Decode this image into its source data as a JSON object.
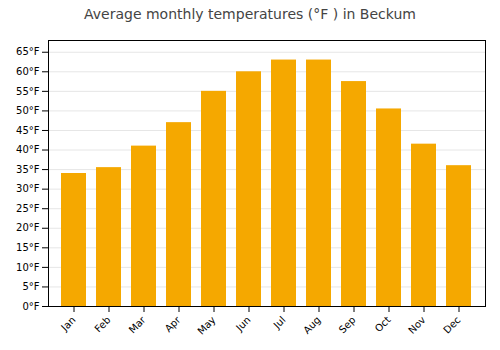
{
  "chart_data": {
    "type": "bar",
    "title": "Average monthly temperatures (°F ) in Beckum",
    "categories": [
      "Jan",
      "Feb",
      "Mar",
      "Apr",
      "May",
      "Jun",
      "Jul",
      "Aug",
      "Sep",
      "Oct",
      "Nov",
      "Dec"
    ],
    "values": [
      34,
      35.5,
      41,
      47,
      55,
      60,
      63,
      63,
      57.5,
      50.5,
      41.5,
      36
    ],
    "color": "#F5A800",
    "ylim": [
      0,
      68
    ],
    "yticks": [
      {
        "value": 0,
        "label": "0°F"
      },
      {
        "value": 5,
        "label": "5°F"
      },
      {
        "value": 10,
        "label": "10°F"
      },
      {
        "value": 15,
        "label": "15°F"
      },
      {
        "value": 20,
        "label": "20°F"
      },
      {
        "value": 25,
        "label": "25°F"
      },
      {
        "value": 30,
        "label": "30°F"
      },
      {
        "value": 35,
        "label": "35°F"
      },
      {
        "value": 40,
        "label": "40°F"
      },
      {
        "value": 45,
        "label": "45°F"
      },
      {
        "value": 50,
        "label": "50°F"
      },
      {
        "value": 55,
        "label": "55°F"
      },
      {
        "value": 60,
        "label": "60°F"
      },
      {
        "value": 65,
        "label": "65°F"
      }
    ],
    "grid": true
  }
}
